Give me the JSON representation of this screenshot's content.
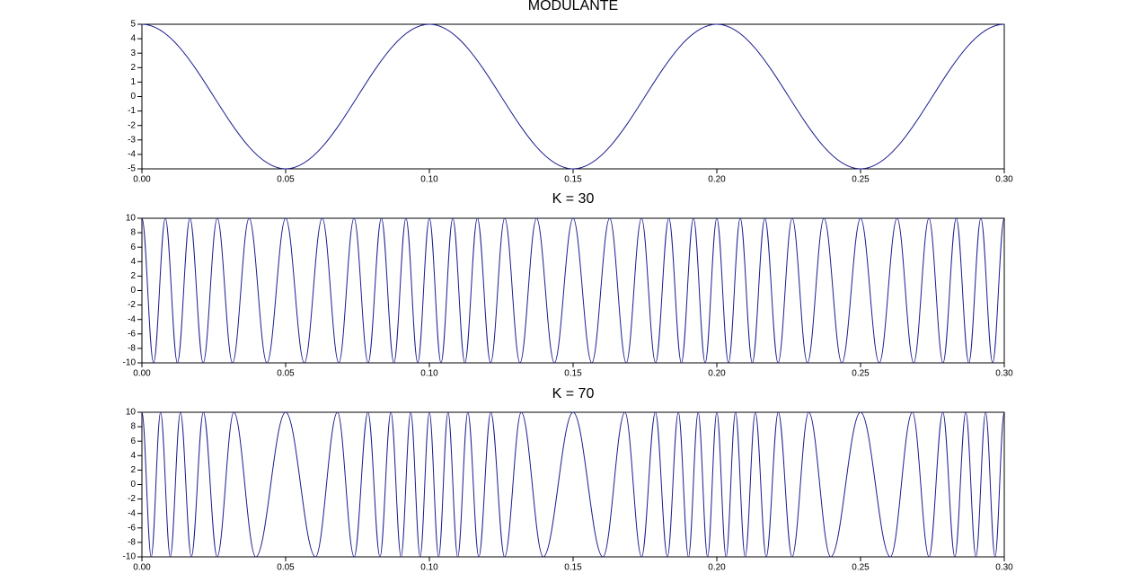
{
  "chart_data": [
    {
      "type": "line",
      "title": "MODULANTE",
      "x": [
        0,
        0.05,
        0.1,
        0.15,
        0.2,
        0.25,
        0.3
      ],
      "series": [
        {
          "color": "#1c1c8f",
          "values": [
            5,
            -5,
            5,
            -5,
            5,
            -5,
            5
          ]
        }
      ],
      "xlim": [
        0,
        0.3
      ],
      "ylim": [
        -5,
        5
      ],
      "xticks": [
        {
          "value": 0,
          "label": "0.00"
        },
        {
          "value": 0.05,
          "label": "0.05"
        },
        {
          "value": 0.1,
          "label": "0.10"
        },
        {
          "value": 0.15,
          "label": "0.15"
        },
        {
          "value": 0.2,
          "label": "0.20"
        },
        {
          "value": 0.25,
          "label": "0.25"
        },
        {
          "value": 0.3,
          "label": "0.30"
        }
      ],
      "yticks": [
        -5,
        -4,
        -3,
        -2,
        -1,
        0,
        1,
        2,
        3,
        4,
        5
      ]
    },
    {
      "type": "line",
      "title": "K = 30",
      "x": [
        0,
        0.00405,
        0.00814,
        0.01234,
        0.0167,
        0.0213,
        0.02621,
        0.03151,
        0.03728,
        0.04349,
        0.05,
        0.05651,
        0.06272,
        0.06849,
        0.07379,
        0.0787,
        0.0833,
        0.08766,
        0.09186,
        0.09595,
        0.1,
        0.10405,
        0.10814,
        0.11234,
        0.1167,
        0.1213,
        0.12621,
        0.13151,
        0.13728,
        0.14349,
        0.15,
        0.15651,
        0.16272,
        0.16849,
        0.17379,
        0.1787,
        0.1833,
        0.18766,
        0.19186,
        0.19595,
        0.2,
        0.20405,
        0.20814,
        0.21234,
        0.2167,
        0.2213,
        0.22621,
        0.23151,
        0.23728,
        0.24349,
        0.25,
        0.25651,
        0.26272,
        0.26849,
        0.27379,
        0.2787,
        0.2833,
        0.28766,
        0.29186,
        0.29595,
        0.3
      ],
      "series": [
        {
          "color": "#1c1c8f",
          "values": [
            10,
            -10,
            10,
            -10,
            10,
            -10,
            10,
            -10,
            10,
            -10,
            10,
            -10,
            10,
            -10,
            10,
            -10,
            10,
            -10,
            10,
            -10,
            10,
            -10,
            10,
            -10,
            10,
            -10,
            10,
            -10,
            10,
            -10,
            10,
            -10,
            10,
            -10,
            10,
            -10,
            10,
            -10,
            10,
            -10,
            10,
            -10,
            10,
            -10,
            10,
            -10,
            10,
            -10,
            10,
            -10,
            10,
            -10,
            10,
            -10,
            10,
            -10,
            10,
            -10,
            10,
            -10,
            10
          ]
        }
      ],
      "xlim": [
        0,
        0.3
      ],
      "ylim": [
        -10,
        10
      ],
      "xticks": [
        {
          "value": 0,
          "label": "0.00"
        },
        {
          "value": 0.05,
          "label": "0.05"
        },
        {
          "value": 0.1,
          "label": "0.10"
        },
        {
          "value": 0.15,
          "label": "0.15"
        },
        {
          "value": 0.2,
          "label": "0.20"
        },
        {
          "value": 0.25,
          "label": "0.25"
        },
        {
          "value": 0.3,
          "label": "0.30"
        }
      ],
      "yticks": [
        -10,
        -8,
        -6,
        -4,
        -2,
        0,
        2,
        4,
        6,
        8,
        10
      ]
    },
    {
      "type": "line",
      "title": "K = 70",
      "x": [
        0,
        0.00322,
        0.00649,
        0.00986,
        0.01339,
        0.01719,
        0.02137,
        0.02616,
        0.03197,
        0.03962,
        0.05,
        0.06038,
        0.06803,
        0.07384,
        0.07863,
        0.08281,
        0.08661,
        0.09014,
        0.09351,
        0.09678,
        0.1,
        0.10322,
        0.10649,
        0.10986,
        0.11339,
        0.11719,
        0.12137,
        0.12616,
        0.13197,
        0.13962,
        0.15,
        0.16038,
        0.16803,
        0.17384,
        0.17863,
        0.18281,
        0.18661,
        0.19014,
        0.19351,
        0.19678,
        0.2,
        0.20322,
        0.20649,
        0.20986,
        0.21339,
        0.21719,
        0.22137,
        0.22616,
        0.23197,
        0.23962,
        0.25,
        0.26038,
        0.26803,
        0.27384,
        0.27863,
        0.28281,
        0.28661,
        0.29014,
        0.29351,
        0.29678,
        0.3
      ],
      "series": [
        {
          "color": "#1c1c8f",
          "values": [
            10,
            -10,
            10,
            -10,
            10,
            -10,
            10,
            -10,
            10,
            -10,
            10,
            -10,
            10,
            -10,
            10,
            -10,
            10,
            -10,
            10,
            -10,
            10,
            -10,
            10,
            -10,
            10,
            -10,
            10,
            -10,
            10,
            -10,
            10,
            -10,
            10,
            -10,
            10,
            -10,
            10,
            -10,
            10,
            -10,
            10,
            -10,
            10,
            -10,
            10,
            -10,
            10,
            -10,
            10,
            -10,
            10,
            -10,
            10,
            -10,
            10,
            -10,
            10,
            -10,
            10,
            -10,
            10
          ]
        }
      ],
      "xlim": [
        0,
        0.3
      ],
      "ylim": [
        -10,
        10
      ],
      "xticks": [
        {
          "value": 0,
          "label": "0.00"
        },
        {
          "value": 0.05,
          "label": "0.05"
        },
        {
          "value": 0.1,
          "label": "0.10"
        },
        {
          "value": 0.15,
          "label": "0.15"
        },
        {
          "value": 0.2,
          "label": "0.20"
        },
        {
          "value": 0.25,
          "label": "0.25"
        },
        {
          "value": 0.3,
          "label": "0.30"
        }
      ],
      "yticks": [
        -10,
        -8,
        -6,
        -4,
        -2,
        0,
        2,
        4,
        6,
        8,
        10
      ]
    }
  ]
}
